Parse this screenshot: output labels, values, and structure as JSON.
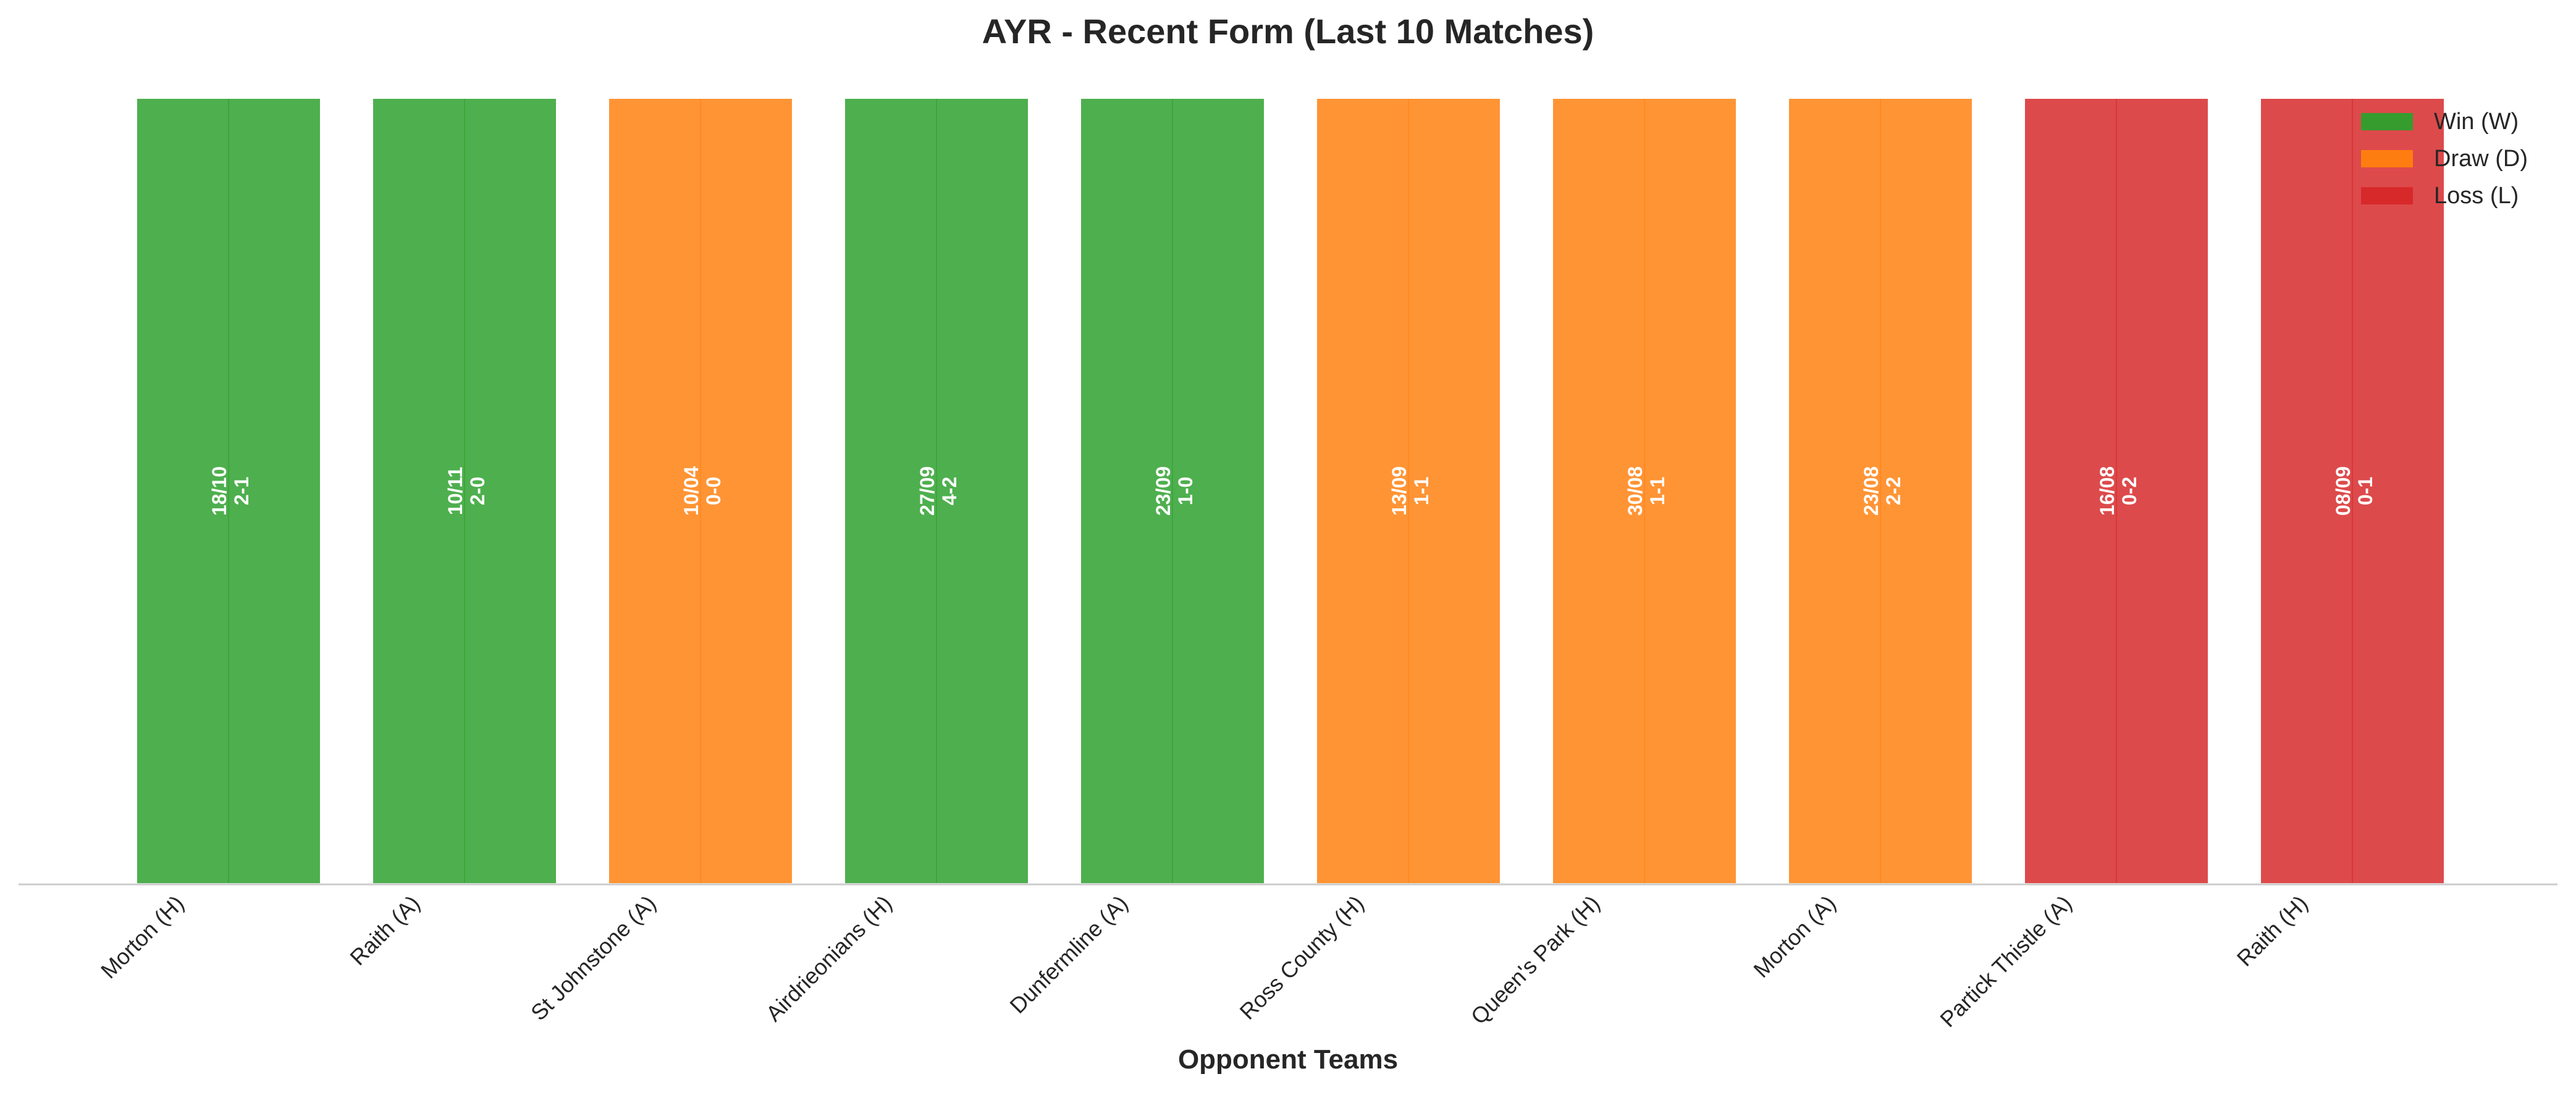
{
  "chart_data": {
    "type": "bar",
    "title": "AYR - Recent Form (Last 10 Matches)",
    "xlabel": "Opponent Teams",
    "ylabel": "",
    "grid": false,
    "legend_position": "top-right",
    "legend": [
      {
        "key": "W",
        "label": "Win (W)",
        "color": "#2ca02c"
      },
      {
        "key": "D",
        "label": "Draw (D)",
        "color": "#ff7f0e"
      },
      {
        "key": "L",
        "label": "Loss (L)",
        "color": "#d62728"
      }
    ],
    "categories": [
      "Morton (H)",
      "Raith (A)",
      "St Johnstone (A)",
      "Airdrieonians (H)",
      "Dunfermline (A)",
      "Ross County (H)",
      "Queen's Park (H)",
      "Morton (A)",
      "Partick Thistle (A)",
      "Raith (H)"
    ],
    "values": [
      1,
      1,
      1,
      1,
      1,
      1,
      1,
      1,
      1,
      1
    ],
    "ylim": [
      0,
      1
    ],
    "results": [
      "W",
      "W",
      "D",
      "W",
      "W",
      "D",
      "D",
      "D",
      "L",
      "L"
    ],
    "dates": [
      "18/10",
      "10/11",
      "10/04",
      "27/09",
      "23/09",
      "13/09",
      "30/08",
      "23/08",
      "16/08",
      "08/09"
    ],
    "scores": [
      "2-1",
      "2-0",
      "0-0",
      "4-2",
      "1-0",
      "1-1",
      "1-1",
      "2-2",
      "0-2",
      "0-1"
    ]
  }
}
